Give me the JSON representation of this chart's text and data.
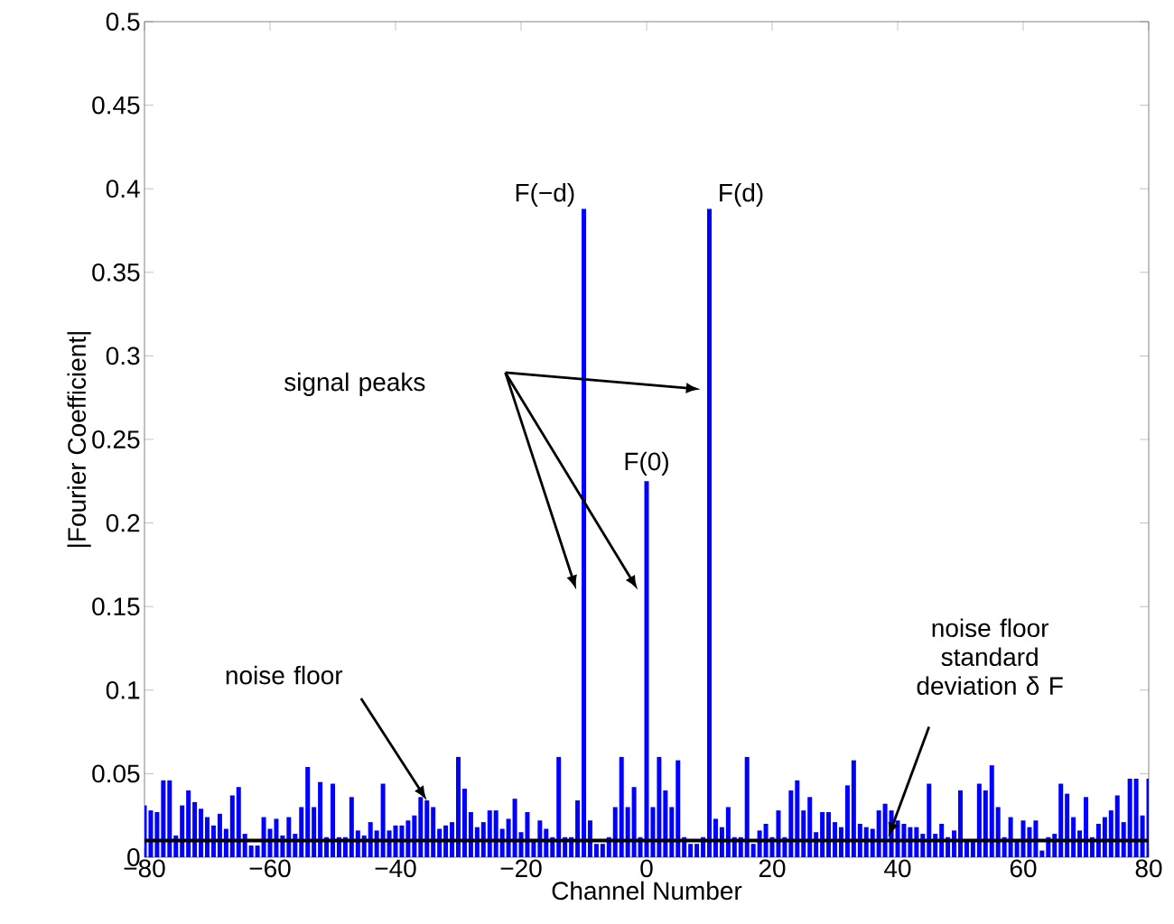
{
  "chart_data": {
    "type": "bar",
    "xlabel": "Channel Number",
    "ylabel": "|Fourier Coefficient|",
    "color": "#0000ff",
    "x": [
      -80,
      -79,
      -78,
      -77,
      -76,
      -75,
      -74,
      -73,
      -72,
      -71,
      -70,
      -69,
      -68,
      -67,
      -66,
      -65,
      -64,
      -63,
      -62,
      -61,
      -60,
      -59,
      -58,
      -57,
      -56,
      -55,
      -54,
      -53,
      -52,
      -51,
      -50,
      -49,
      -48,
      -47,
      -46,
      -45,
      -44,
      -43,
      -42,
      -41,
      -40,
      -39,
      -38,
      -37,
      -36,
      -35,
      -34,
      -33,
      -32,
      -31,
      -30,
      -29,
      -28,
      -27,
      -26,
      -25,
      -24,
      -23,
      -22,
      -21,
      -20,
      -19,
      -18,
      -17,
      -16,
      -15,
      -14,
      -13,
      -12,
      -11,
      -10,
      -9,
      -8,
      -7,
      -6,
      -5,
      -4,
      -3,
      -2,
      -1,
      0,
      1,
      2,
      3,
      4,
      5,
      6,
      7,
      8,
      9,
      10,
      11,
      12,
      13,
      14,
      15,
      16,
      17,
      18,
      19,
      20,
      21,
      22,
      23,
      24,
      25,
      26,
      27,
      28,
      29,
      30,
      31,
      32,
      33,
      34,
      35,
      36,
      37,
      38,
      39,
      40,
      41,
      42,
      43,
      44,
      45,
      46,
      47,
      48,
      49,
      50,
      51,
      52,
      53,
      54,
      55,
      56,
      57,
      58,
      59,
      60,
      61,
      62,
      63,
      64,
      65,
      66,
      67,
      68,
      69,
      70,
      71,
      72,
      73,
      74,
      75,
      76,
      77,
      78,
      79,
      80
    ],
    "values": [
      0.031,
      0.028,
      0.027,
      0.046,
      0.046,
      0.013,
      0.031,
      0.04,
      0.033,
      0.029,
      0.024,
      0.019,
      0.026,
      0.017,
      0.037,
      0.042,
      0.014,
      0.007,
      0.007,
      0.024,
      0.017,
      0.023,
      0.013,
      0.024,
      0.014,
      0.03,
      0.054,
      0.03,
      0.045,
      0.012,
      0.044,
      0.012,
      0.012,
      0.036,
      0.016,
      0.013,
      0.021,
      0.016,
      0.044,
      0.016,
      0.019,
      0.019,
      0.022,
      0.025,
      0.036,
      0.034,
      0.03,
      0.017,
      0.019,
      0.021,
      0.06,
      0.041,
      0.027,
      0.018,
      0.021,
      0.028,
      0.028,
      0.017,
      0.023,
      0.035,
      0.015,
      0.027,
      0.01,
      0.022,
      0.017,
      0.012,
      0.06,
      0.012,
      0.012,
      0.034,
      0.388,
      0.022,
      0.008,
      0.008,
      0.012,
      0.03,
      0.06,
      0.03,
      0.042,
      0.012,
      0.225,
      0.03,
      0.06,
      0.04,
      0.03,
      0.058,
      0.012,
      0.008,
      0.008,
      0.012,
      0.388,
      0.023,
      0.018,
      0.03,
      0.012,
      0.012,
      0.06,
      0.008,
      0.016,
      0.02,
      0.012,
      0.028,
      0.012,
      0.04,
      0.046,
      0.028,
      0.036,
      0.015,
      0.027,
      0.027,
      0.021,
      0.018,
      0.043,
      0.058,
      0.02,
      0.018,
      0.017,
      0.028,
      0.032,
      0.028,
      0.022,
      0.02,
      0.018,
      0.018,
      0.014,
      0.044,
      0.014,
      0.02,
      0.012,
      0.016,
      0.04,
      0.01,
      0.01,
      0.044,
      0.04,
      0.055,
      0.03,
      0.012,
      0.024,
      0.01,
      0.022,
      0.018,
      0.022,
      0.004,
      0.012,
      0.014,
      0.044,
      0.038,
      0.024,
      0.016,
      0.036,
      0.012,
      0.02,
      0.024,
      0.028,
      0.037,
      0.021,
      0.047,
      0.047,
      0.025,
      0.047
    ],
    "xlim": [
      -80,
      80
    ],
    "ylim": [
      0,
      0.5
    ],
    "xticks": [
      {
        "value": -80,
        "label": "−80"
      },
      {
        "value": -60,
        "label": "−60"
      },
      {
        "value": -40,
        "label": "−40"
      },
      {
        "value": -20,
        "label": "−20"
      },
      0,
      20,
      40,
      60,
      80
    ],
    "yticks": [
      0,
      0.05,
      0.1,
      0.15,
      0.2,
      0.25,
      0.3,
      0.35,
      0.4,
      0.45,
      0.5
    ],
    "ref_lines": [
      {
        "axis": "y",
        "value": 0.01,
        "color": "#000000"
      }
    ],
    "annotations": [
      {
        "text": "F(−d)",
        "x": -10,
        "y": 0.388
      },
      {
        "text": "F(d)",
        "x": 10,
        "y": 0.388
      },
      {
        "text": "F(0)",
        "x": 0,
        "y": 0.225
      },
      "signal peaks",
      {
        "text": "noise floor",
        "x": -35,
        "y": 0.034
      },
      {
        "text": "noise floor standard deviation δ F",
        "x": 38.5,
        "y": 0.012
      }
    ]
  }
}
